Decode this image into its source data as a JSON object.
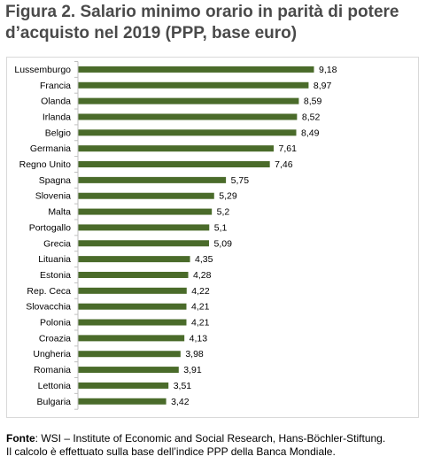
{
  "title_line1": "Figura 2. Salario minimo  orario in parità di potere",
  "title_line2": "d’acquisto nel 2019 (PPP, base euro)",
  "source": {
    "label": "Fonte",
    "text": ": WSI – Institute of Economic and Social Research, Hans-Böchler-Stiftung.",
    "note": "Il calcolo è effettuato sulla base dell’indice PPP della Banca Mondiale."
  },
  "chart_data": {
    "type": "bar",
    "orientation": "horizontal",
    "categories": [
      "Lussemburgo",
      "Francia",
      "Olanda",
      "Irlanda",
      "Belgio",
      "Germania",
      "Regno Unito",
      "Spagna",
      "Slovenia",
      "Malta",
      "Portogallo",
      "Grecia",
      "Lituania",
      "Estonia",
      "Rep. Ceca",
      "Slovacchia",
      "Polonia",
      "Croazia",
      "Ungheria",
      "Romania",
      "Lettonia",
      "Bulgaria"
    ],
    "values": [
      9.18,
      8.97,
      8.59,
      8.52,
      8.49,
      7.61,
      7.46,
      5.75,
      5.29,
      5.2,
      5.1,
      5.09,
      4.35,
      4.28,
      4.22,
      4.21,
      4.21,
      4.13,
      3.98,
      3.91,
      3.51,
      3.42
    ],
    "value_labels": [
      "9,18",
      "8,97",
      "8,59",
      "8,52",
      "8,49",
      "7,61",
      "7,46",
      "5,75",
      "5,29",
      "5,2",
      "5,1",
      "5,09",
      "4,35",
      "4,28",
      "4,22",
      "4,21",
      "4,21",
      "4,13",
      "3,98",
      "3,91",
      "3,51",
      "3,42"
    ],
    "xlim": [
      0,
      9.18
    ],
    "bar_color": "#4a6b2a",
    "grid": false,
    "legend": "none"
  }
}
